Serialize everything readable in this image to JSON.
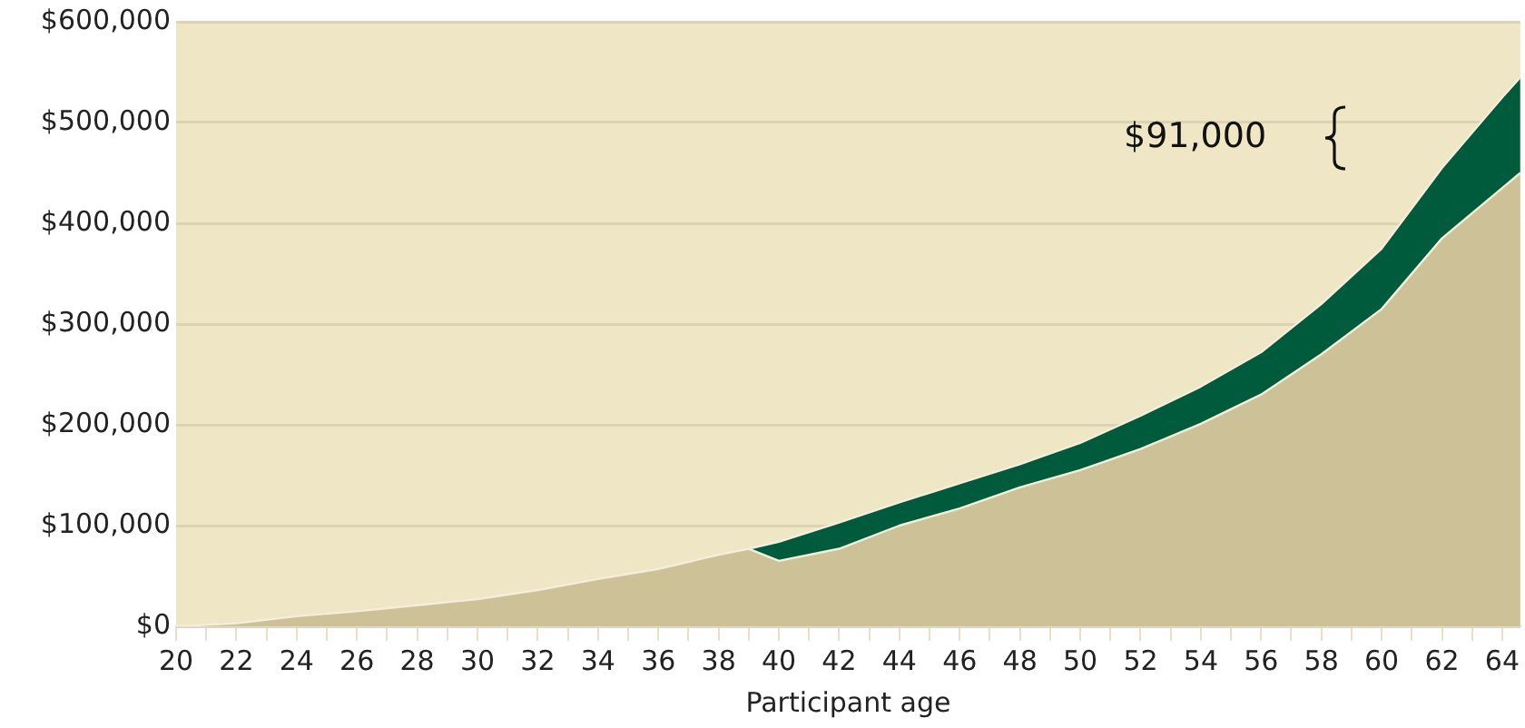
{
  "chart_data": {
    "type": "area",
    "xlabel": "Participant age",
    "stacked": true,
    "grid": "y",
    "legend": false,
    "x": [
      20,
      22,
      24,
      26,
      28,
      30,
      32,
      34,
      36,
      38,
      39,
      40,
      42,
      44,
      46,
      48,
      50,
      52,
      54,
      56,
      58,
      60,
      62,
      64,
      64.6
    ],
    "series": [
      {
        "color": "#cdc197",
        "values": [
          0,
          3000,
          10000,
          15000,
          21000,
          27000,
          36000,
          47000,
          57000,
          71000,
          77000,
          65000,
          77000,
          100000,
          117000,
          138000,
          155000,
          176000,
          201000,
          230000,
          270000,
          315000,
          385000,
          435000,
          450000
        ]
      },
      {
        "color": "#005a3c",
        "values": [
          null,
          null,
          null,
          null,
          null,
          null,
          null,
          null,
          null,
          null,
          0,
          19000,
          26000,
          23000,
          25000,
          23000,
          27000,
          33000,
          37000,
          42000,
          50000,
          60000,
          70000,
          90000,
          95000
        ]
      }
    ],
    "xlim": [
      20,
      64.6
    ],
    "xticks": [
      20,
      {
        "value": 21,
        "label": null
      },
      22,
      {
        "value": 23,
        "label": null
      },
      24,
      {
        "value": 25,
        "label": null
      },
      26,
      {
        "value": 27,
        "label": null
      },
      28,
      {
        "value": 29,
        "label": null
      },
      30,
      {
        "value": 31,
        "label": null
      },
      32,
      {
        "value": 33,
        "label": null
      },
      34,
      {
        "value": 35,
        "label": null
      },
      36,
      {
        "value": 37,
        "label": null
      },
      38,
      {
        "value": 39,
        "label": null
      },
      40,
      {
        "value": 41,
        "label": null
      },
      42,
      {
        "value": 43,
        "label": null
      },
      44,
      {
        "value": 45,
        "label": null
      },
      46,
      {
        "value": 47,
        "label": null
      },
      48,
      {
        "value": 49,
        "label": null
      },
      50,
      {
        "value": 51,
        "label": null
      },
      52,
      {
        "value": 53,
        "label": null
      },
      54,
      {
        "value": 55,
        "label": null
      },
      56,
      {
        "value": 57,
        "label": null
      },
      58,
      {
        "value": 59,
        "label": null
      },
      60,
      {
        "value": 61,
        "label": null
      },
      62,
      {
        "value": 63,
        "label": null
      },
      64
    ],
    "ylim": [
      0,
      600000
    ],
    "yticks": [
      {
        "value": 0,
        "label": "$0"
      },
      {
        "value": 100000,
        "label": "$100,000"
      },
      {
        "value": 200000,
        "label": "$200,000"
      },
      {
        "value": 300000,
        "label": "$300,000"
      },
      {
        "value": 400000,
        "label": "$400,000"
      },
      {
        "value": 500000,
        "label": "$500,000"
      },
      {
        "value": 600000,
        "label": "$600,000"
      }
    ],
    "annotations": [
      "$91,000"
    ]
  }
}
